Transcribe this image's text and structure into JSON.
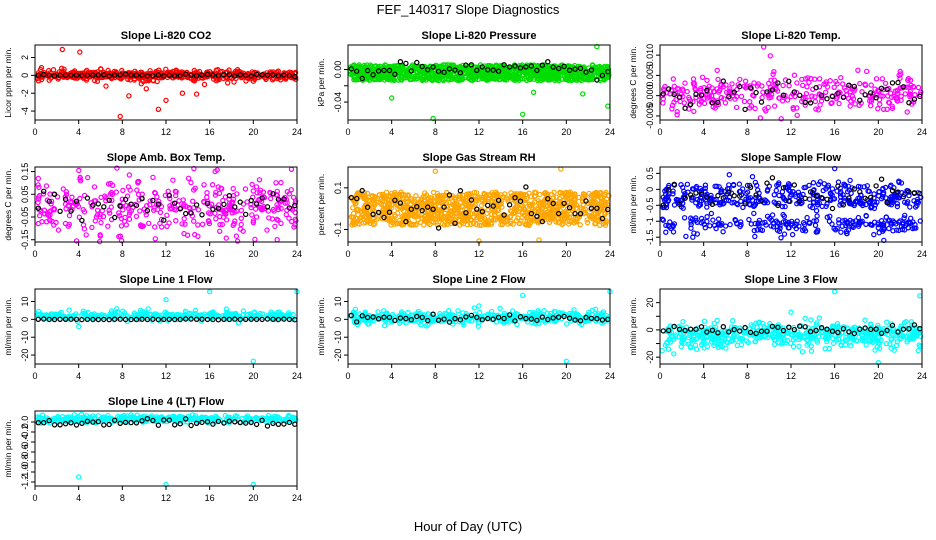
{
  "figure": {
    "title": "FEF_140317  Slope Diagnostics",
    "xlabel": "Hour of Day (UTC)"
  },
  "chart_data": [
    {
      "type": "scatter",
      "title": "Slope Li-820 CO2",
      "ylabel": "Licor ppm per min.",
      "color": "#ff0000",
      "xlim": [
        0,
        24
      ],
      "ylim": [
        -5,
        3.4
      ],
      "xticks": [
        0,
        4,
        8,
        12,
        16,
        20,
        24
      ],
      "yticks": [
        -4,
        -2,
        0,
        2
      ],
      "yticklabels": [
        "-4",
        "-2",
        "0",
        "2"
      ],
      "series": [
        {
          "color": "#ff0000",
          "points": [
            [
              2.5,
              2.9
            ],
            [
              4.1,
              2.6
            ],
            [
              7.8,
              -4.6
            ],
            [
              11.3,
              -3.8
            ],
            [
              8.6,
              -2.3
            ],
            [
              12.0,
              -2.8
            ],
            [
              6.5,
              -1.2
            ],
            [
              10.2,
              -1.5
            ],
            [
              13.5,
              -2.0
            ],
            [
              14.8,
              -2.1
            ]
          ]
        },
        {
          "color": "#000000",
          "points": []
        }
      ]
    },
    {
      "type": "scatter",
      "title": "Slope Li-820 Pressure",
      "ylabel": "kPa per min.",
      "color": "#00dd00",
      "xlim": [
        0,
        24
      ],
      "ylim": [
        -0.062,
        0.03
      ],
      "xticks": [
        0,
        4,
        8,
        12,
        16,
        20,
        24
      ],
      "yticks": [
        -0.04,
        -0.02,
        0.0
      ],
      "yticklabels": [
        "-0.04",
        "",
        "0.00"
      ],
      "series": [
        {
          "color": "#00dd00",
          "points": [
            [
              7.8,
              -0.06
            ],
            [
              16.0,
              -0.055
            ],
            [
              4.0,
              -0.035
            ],
            [
              23.8,
              -0.045
            ],
            [
              22.8,
              0.028
            ],
            [
              21.5,
              -0.03
            ],
            [
              17.0,
              -0.028
            ]
          ]
        },
        {
          "color": "#000000",
          "points": []
        }
      ]
    },
    {
      "type": "scatter",
      "title": "Slope Li-820 Temp.",
      "ylabel": "degrees C per min.",
      "color": "#ff00ff",
      "xlim": [
        0,
        24
      ],
      "ylim": [
        -0.006,
        0.0125
      ],
      "xticks": [
        0,
        4,
        8,
        12,
        16,
        20,
        24
      ],
      "yticks": [
        -0.005,
        0.0,
        0.005,
        0.01
      ],
      "yticklabels": [
        "-0.005",
        "0.000",
        "0.005",
        "0.010"
      ],
      "series": [
        {
          "color": "#ff00ff",
          "points": [
            [
              9.5,
              0.012
            ],
            [
              9.2,
              -0.0055
            ],
            [
              14.5,
              -0.0035
            ],
            [
              10.1,
              0.0098
            ]
          ]
        },
        {
          "color": "#000000",
          "points": []
        }
      ]
    },
    {
      "type": "scatter",
      "title": "Slope Amb. Box Temp.",
      "ylabel": "degrees C per min.",
      "color": "#ff00ff",
      "xlim": [
        0,
        24
      ],
      "ylim": [
        -0.16,
        0.17
      ],
      "xticks": [
        0,
        4,
        8,
        12,
        16,
        20,
        24
      ],
      "yticks": [
        -0.15,
        -0.05,
        0.05,
        0.15
      ],
      "yticklabels": [
        "-0.15",
        "-0.05",
        "0.05",
        "0.15"
      ],
      "series": [
        {
          "color": "#ff00ff",
          "points": [
            [
              3.8,
              -0.155
            ],
            [
              7.5,
              0.165
            ],
            [
              23.5,
              0.16
            ],
            [
              16.5,
              0.15
            ]
          ]
        },
        {
          "color": "#000000",
          "points": []
        }
      ]
    },
    {
      "type": "scatter",
      "title": "Slope Gas Stream RH",
      "ylabel": "percent per min.",
      "color": "#ffa500",
      "xlim": [
        0,
        24
      ],
      "ylim": [
        -0.16,
        0.2
      ],
      "xticks": [
        0,
        4,
        8,
        12,
        16,
        20,
        24
      ],
      "yticks": [
        -0.1,
        0.1
      ],
      "yticklabels": [
        "-0.1",
        "0.1"
      ],
      "series": [
        {
          "color": "#ffa500",
          "points": [
            [
              12.0,
              -0.155
            ],
            [
              17.5,
              -0.15
            ],
            [
              19.5,
              0.19
            ],
            [
              8.0,
              0.18
            ]
          ]
        },
        {
          "color": "#000000",
          "points": []
        }
      ]
    },
    {
      "type": "scatter",
      "title": "Slope Sample Flow",
      "ylabel": "ml/min per min.",
      "color": "#0000ff",
      "xlim": [
        0,
        24
      ],
      "ylim": [
        -1.65,
        0.7
      ],
      "xticks": [
        0,
        4,
        8,
        12,
        16,
        20,
        24
      ],
      "yticks": [
        -1.5,
        -1.0,
        -0.5,
        0.0,
        0.5
      ],
      "yticklabels": [
        "-1.5",
        "-1",
        "-0.5",
        "0",
        "0.5"
      ],
      "series": [
        {
          "color": "#0000ff",
          "points": [
            [
              16.0,
              0.65
            ],
            [
              20.5,
              -1.6
            ],
            [
              3.0,
              -1.5
            ]
          ]
        },
        {
          "color": "#000000",
          "points": []
        }
      ]
    },
    {
      "type": "scatter",
      "title": "Slope Line 1 Flow",
      "ylabel": "ml/min per min.",
      "color": "#00ffff",
      "xlim": [
        0,
        24
      ],
      "ylim": [
        -25,
        17
      ],
      "xticks": [
        0,
        4,
        8,
        12,
        16,
        20,
        24
      ],
      "yticks": [
        -20,
        -10,
        0,
        10
      ],
      "yticklabels": [
        "-20",
        "-10",
        "0",
        "10"
      ],
      "series": [
        {
          "color": "#00ffff",
          "points": [
            [
              16.0,
              15.5
            ],
            [
              24.0,
              15.5
            ],
            [
              20.0,
              -23.5
            ],
            [
              12.0,
              11.0
            ],
            [
              4.0,
              -4.0
            ]
          ]
        },
        {
          "color": "#000000",
          "points": []
        }
      ]
    },
    {
      "type": "scatter",
      "title": "Slope Line 2 Flow",
      "ylabel": "ml/min per min.",
      "color": "#00ffff",
      "xlim": [
        0,
        24
      ],
      "ylim": [
        -25,
        17
      ],
      "xticks": [
        0,
        4,
        8,
        12,
        16,
        20,
        24
      ],
      "yticks": [
        -20,
        -10,
        0,
        10
      ],
      "yticklabels": [
        "-20",
        "-10",
        "0",
        "10"
      ],
      "series": [
        {
          "color": "#00ffff",
          "points": [
            [
              16.0,
              13.5
            ],
            [
              24.0,
              15.5
            ],
            [
              20.0,
              -23.5
            ],
            [
              12.0,
              7.5
            ]
          ]
        },
        {
          "color": "#000000",
          "points": []
        }
      ]
    },
    {
      "type": "scatter",
      "title": "Slope Line 3 Flow",
      "ylabel": "ml/min per min.",
      "color": "#00ffff",
      "xlim": [
        0,
        24
      ],
      "ylim": [
        -25,
        30
      ],
      "xticks": [
        0,
        4,
        8,
        12,
        16,
        20,
        24
      ],
      "yticks": [
        -20,
        -10,
        0,
        10,
        20
      ],
      "yticklabels": [
        "-20",
        "",
        "0",
        "",
        "20"
      ],
      "series": [
        {
          "color": "#00ffff",
          "points": [
            [
              16.0,
              28.0
            ],
            [
              23.8,
              25.0
            ],
            [
              20.0,
              -24.0
            ],
            [
              12.0,
              13.0
            ]
          ]
        },
        {
          "color": "#000000",
          "points": []
        }
      ]
    },
    {
      "type": "scatter",
      "title": "Slope Line 4 (LT) Flow",
      "ylabel": "ml/min per min.",
      "color": "#00ffff",
      "xlim": [
        0,
        24
      ],
      "ylim": [
        -1.28,
        0.22
      ],
      "xticks": [
        0,
        4,
        8,
        12,
        16,
        20,
        24
      ],
      "yticks": [
        -1.2,
        -1.0,
        -0.8,
        -0.6,
        -0.4,
        -0.2,
        0.0
      ],
      "yticklabels": [
        "-1.2",
        "-1.0",
        "-0.8",
        "-0.6",
        "-0.4",
        "-0.2",
        "0.0"
      ],
      "series": [
        {
          "color": "#00ffff",
          "points": [
            [
              4.0,
              -1.1
            ],
            [
              12.0,
              -1.25
            ],
            [
              20.0,
              -1.25
            ]
          ]
        },
        {
          "color": "#000000",
          "points": []
        }
      ]
    }
  ]
}
